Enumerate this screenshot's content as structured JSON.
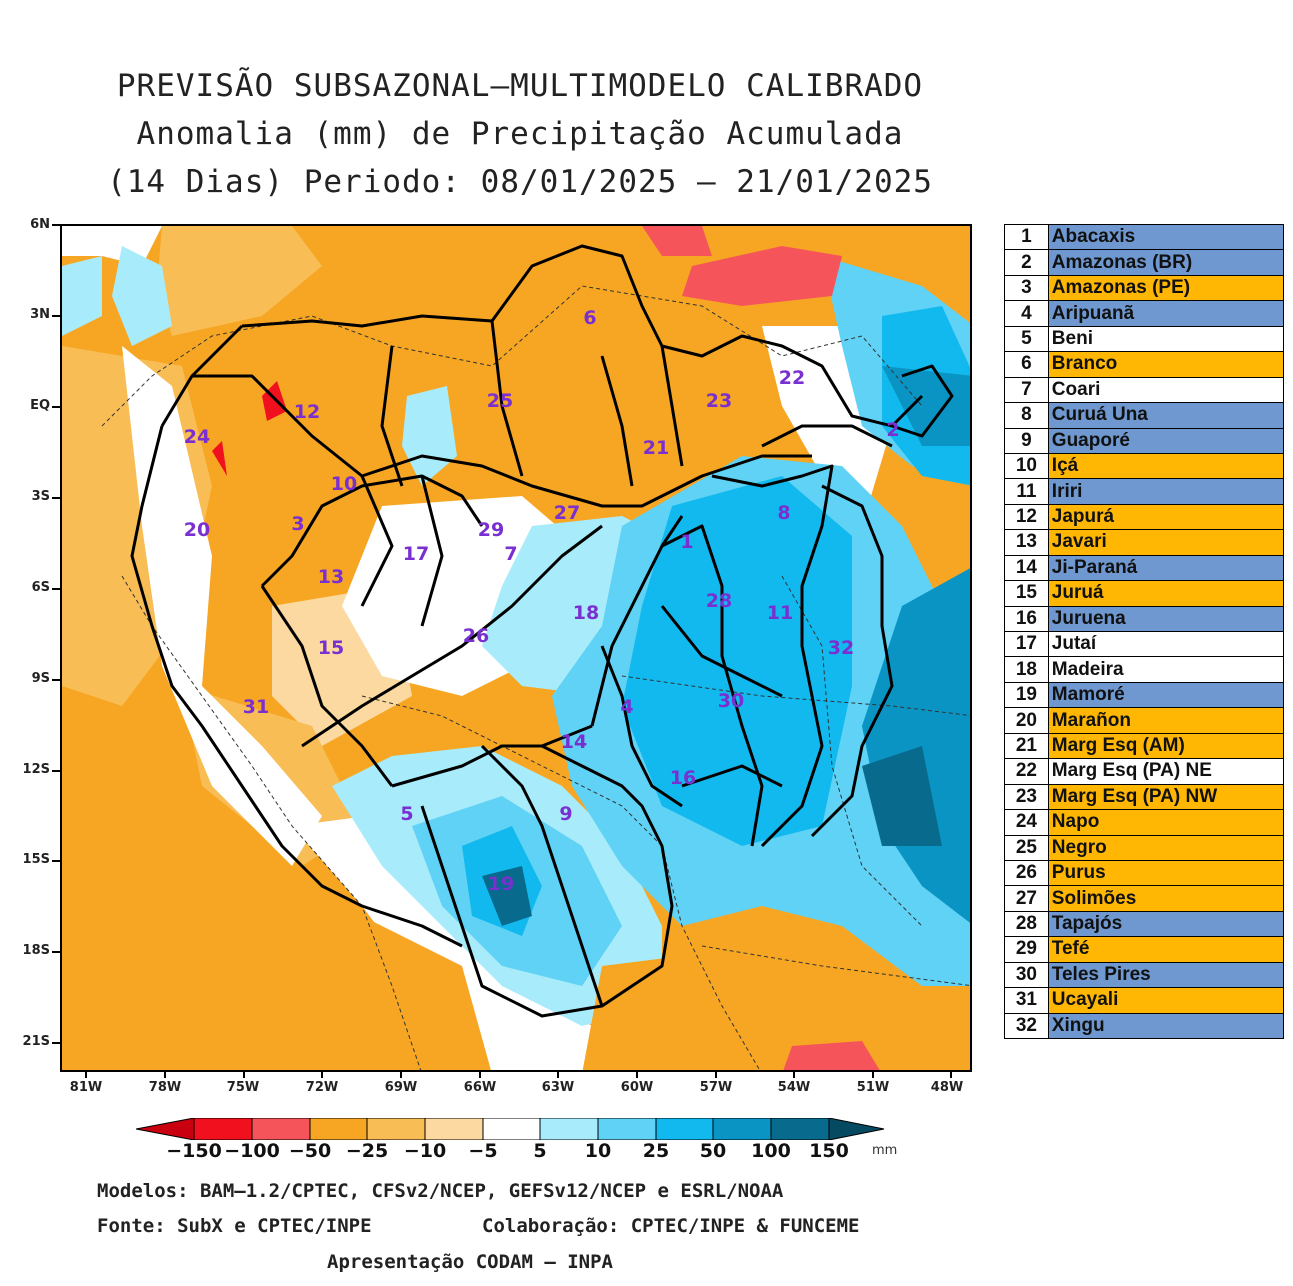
{
  "title": {
    "line1": "PREVISÃO SUBSAZONAL—MULTIMODELO CALIBRADO",
    "line2": "Anomalia (mm) de Precipitação Acumulada",
    "line3": "(14 Dias) Periodo: 08/01/2025 — 21/01/2025"
  },
  "axes": {
    "lat_labels": [
      "6N",
      "3N",
      "EQ",
      "3S",
      "6S",
      "9S",
      "12S",
      "15S",
      "18S",
      "21S"
    ],
    "lon_labels": [
      "81W",
      "78W",
      "75W",
      "72W",
      "69W",
      "66W",
      "63W",
      "60W",
      "57W",
      "54W",
      "51W",
      "48W"
    ]
  },
  "colorbar": {
    "labels": [
      "−150",
      "−100",
      "−50",
      "−25",
      "−10",
      "−5",
      "5",
      "10",
      "25",
      "50",
      "100",
      "150"
    ],
    "unit": "mm",
    "colors": [
      "#c8000f",
      "#f0101e",
      "#f5555a",
      "#f6a623",
      "#f8bd55",
      "#fbd9a0",
      "#ffffff",
      "#a8ecfb",
      "#5fd2f5",
      "#12b9ee",
      "#0a94c4",
      "#086a8c",
      "#064a62"
    ]
  },
  "basin_labels": [
    {
      "num": "6"
    },
    {
      "num": "25"
    },
    {
      "num": "12"
    },
    {
      "num": "24"
    },
    {
      "num": "10"
    },
    {
      "num": "23"
    },
    {
      "num": "22"
    },
    {
      "num": "21"
    },
    {
      "num": "2"
    },
    {
      "num": "3"
    },
    {
      "num": "20"
    },
    {
      "num": "17"
    },
    {
      "num": "29"
    },
    {
      "num": "7"
    },
    {
      "num": "27"
    },
    {
      "num": "1"
    },
    {
      "num": "8"
    },
    {
      "num": "13"
    },
    {
      "num": "18"
    },
    {
      "num": "28"
    },
    {
      "num": "11"
    },
    {
      "num": "15"
    },
    {
      "num": "26"
    },
    {
      "num": "32"
    },
    {
      "num": "31"
    },
    {
      "num": "4"
    },
    {
      "num": "30"
    },
    {
      "num": "14"
    },
    {
      "num": "16"
    },
    {
      "num": "5"
    },
    {
      "num": "9"
    },
    {
      "num": "19"
    }
  ],
  "legend": [
    {
      "num": "1",
      "name": "Abacaxis",
      "color": "#6e98cf"
    },
    {
      "num": "2",
      "name": "Amazonas (BR)",
      "color": "#6e98cf"
    },
    {
      "num": "3",
      "name": "Amazonas (PE)",
      "color": "#ffb703"
    },
    {
      "num": "4",
      "name": "Aripuanã",
      "color": "#6e98cf"
    },
    {
      "num": "5",
      "name": "Beni",
      "color": "#ffffff"
    },
    {
      "num": "6",
      "name": "Branco",
      "color": "#ffb703"
    },
    {
      "num": "7",
      "name": "Coari",
      "color": "#ffffff"
    },
    {
      "num": "8",
      "name": "Curuá Una",
      "color": "#6e98cf"
    },
    {
      "num": "9",
      "name": "Guaporé",
      "color": "#6e98cf"
    },
    {
      "num": "10",
      "name": "Içá",
      "color": "#ffb703"
    },
    {
      "num": "11",
      "name": "Iriri",
      "color": "#6e98cf"
    },
    {
      "num": "12",
      "name": "Japurá",
      "color": "#ffb703"
    },
    {
      "num": "13",
      "name": "Javari",
      "color": "#ffb703"
    },
    {
      "num": "14",
      "name": "Ji-Paraná",
      "color": "#6e98cf"
    },
    {
      "num": "15",
      "name": "Juruá",
      "color": "#ffb703"
    },
    {
      "num": "16",
      "name": "Juruena",
      "color": "#6e98cf"
    },
    {
      "num": "17",
      "name": "Jutaí",
      "color": "#ffffff"
    },
    {
      "num": "18",
      "name": "Madeira",
      "color": "#ffffff"
    },
    {
      "num": "19",
      "name": "Mamoré",
      "color": "#6e98cf"
    },
    {
      "num": "20",
      "name": "Marañon",
      "color": "#ffb703"
    },
    {
      "num": "21",
      "name": "Marg Esq (AM)",
      "color": "#ffb703"
    },
    {
      "num": "22",
      "name": "Marg Esq (PA) NE",
      "color": "#ffffff"
    },
    {
      "num": "23",
      "name": "Marg Esq (PA) NW",
      "color": "#ffb703"
    },
    {
      "num": "24",
      "name": "Napo",
      "color": "#ffb703"
    },
    {
      "num": "25",
      "name": "Negro",
      "color": "#ffb703"
    },
    {
      "num": "26",
      "name": "Purus",
      "color": "#ffb703"
    },
    {
      "num": "27",
      "name": "Solimões",
      "color": "#ffb703"
    },
    {
      "num": "28",
      "name": "Tapajós",
      "color": "#6e98cf"
    },
    {
      "num": "29",
      "name": "Tefé",
      "color": "#ffb703"
    },
    {
      "num": "30",
      "name": "Teles Pires",
      "color": "#6e98cf"
    },
    {
      "num": "31",
      "name": "Ucayali",
      "color": "#ffb703"
    },
    {
      "num": "32",
      "name": "Xingu",
      "color": "#6e98cf"
    }
  ],
  "footer": {
    "models": "Modelos: BAM—1.2/CPTEC, CFSv2/NCEP, GEFSv12/NCEP e ESRL/NOAA",
    "source": "Fonte: SubX e CPTEC/INPE",
    "collab": "Colaboração: CPTEC/INPE & FUNCEME",
    "presentation": "Apresentação CODAM — INPA"
  }
}
